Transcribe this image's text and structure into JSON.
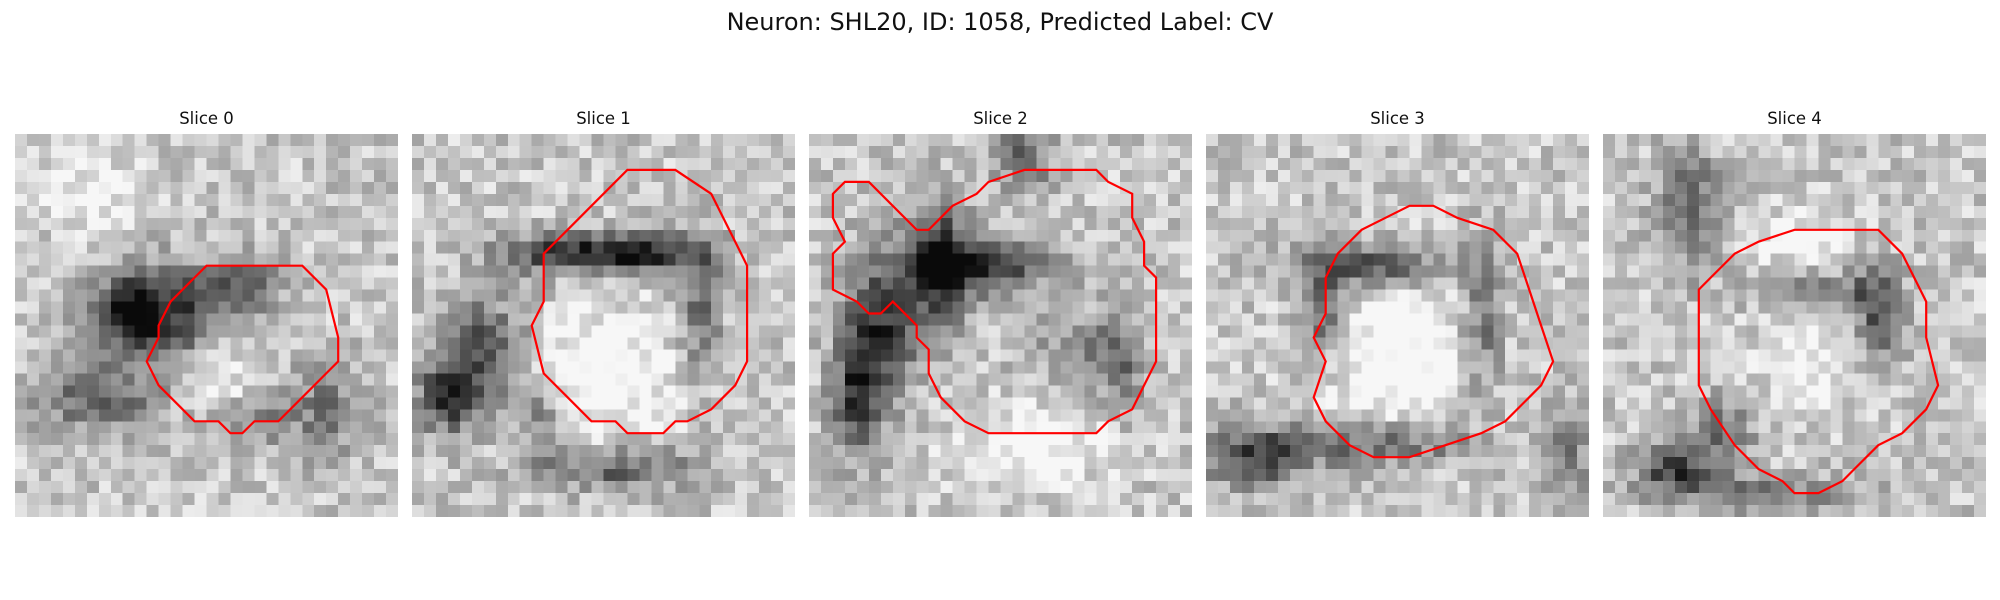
{
  "title": "Neuron: SHL20, ID: 1058, Predicted Label: CV",
  "contour_color": "#ff0000",
  "colormap": "gray",
  "panels": [
    {
      "label": "Slice 0"
    },
    {
      "label": "Slice 1"
    },
    {
      "label": "Slice 2"
    },
    {
      "label": "Slice 3"
    },
    {
      "label": "Slice 4"
    }
  ]
}
